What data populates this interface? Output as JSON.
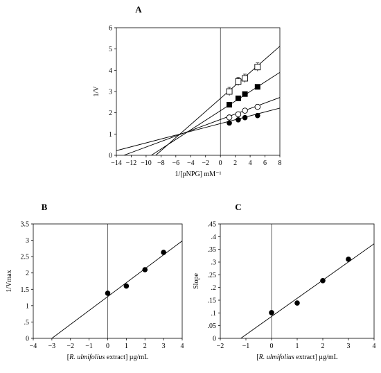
{
  "chart_data": [
    {
      "type": "scatter",
      "panel_label": "A",
      "xlabel": "1/[pNPG] mM⁻¹",
      "ylabel": "1/V",
      "xlim": [
        -14,
        8
      ],
      "ylim": [
        0,
        6
      ],
      "xticks": [
        -14,
        -12,
        -10,
        -8,
        -6,
        -4,
        -2,
        0,
        2,
        4,
        6,
        8
      ],
      "yticks": [
        0,
        1,
        2,
        3,
        4,
        5,
        6
      ],
      "grid": false,
      "series": [
        {
          "marker": "filled-circle",
          "x": [
            1.2,
            2.4,
            3.3,
            5.0
          ],
          "y": [
            1.52,
            1.67,
            1.77,
            1.87
          ],
          "fit": [
            [
              -14,
              0.22
            ],
            [
              8,
              2.22
            ]
          ]
        },
        {
          "marker": "open-circle",
          "x": [
            1.2,
            2.4,
            3.3,
            5.0
          ],
          "y": [
            1.78,
            1.93,
            2.1,
            2.28
          ],
          "fit": [
            [
              -13,
              0.0
            ],
            [
              8,
              2.72
            ]
          ]
        },
        {
          "marker": "filled-square",
          "x": [
            1.2,
            2.4,
            3.3,
            5.0
          ],
          "y": [
            2.38,
            2.68,
            2.88,
            3.22
          ],
          "fit": [
            [
              -9.3,
              0.0
            ],
            [
              8,
              3.9
            ]
          ]
        },
        {
          "marker": "open-square",
          "x": [
            1.2,
            2.4,
            3.3,
            5.0
          ],
          "y": [
            3.0,
            3.47,
            3.62,
            4.15
          ],
          "fit": [
            [
              -8.7,
              0.0
            ],
            [
              8,
              5.13
            ]
          ]
        }
      ]
    },
    {
      "type": "scatter",
      "panel_label": "B",
      "xlabel_italic": "R. ulmifolius",
      "xlabel_rest": " extract] µg/mL",
      "ylabel": "1/Vmax",
      "xlim": [
        -4,
        4
      ],
      "ylim": [
        0,
        3.5
      ],
      "xticks": [
        -4,
        -3,
        -2,
        -1,
        0,
        1,
        2,
        3,
        4
      ],
      "yticks": [
        0,
        0.5,
        1,
        1.5,
        2,
        2.5,
        3,
        3.5
      ],
      "grid": false,
      "series": [
        {
          "marker": "filled-circle",
          "x": [
            0,
            1,
            2,
            3
          ],
          "y": [
            1.38,
            1.6,
            2.1,
            2.63
          ],
          "fit": [
            [
              -3.0,
              0.0
            ],
            [
              4,
              2.98
            ]
          ]
        }
      ]
    },
    {
      "type": "scatter",
      "panel_label": "C",
      "xlabel_italic": "R. ulmifolius",
      "xlabel_rest": " extract] µg/mL",
      "ylabel": "Slope",
      "xlim": [
        -2,
        4
      ],
      "ylim": [
        0,
        0.45
      ],
      "xticks": [
        -2,
        -1,
        0,
        1,
        2,
        3,
        4
      ],
      "yticks": [
        0,
        0.05,
        0.1,
        0.15,
        0.2,
        0.25,
        0.3,
        0.35,
        0.4,
        0.45
      ],
      "grid": false,
      "series": [
        {
          "marker": "filled-circle",
          "x": [
            0,
            1,
            2,
            3
          ],
          "y": [
            0.101,
            0.139,
            0.227,
            0.311
          ],
          "fit": [
            [
              -1.2,
              0.0
            ],
            [
              4,
              0.372
            ]
          ]
        }
      ]
    }
  ]
}
